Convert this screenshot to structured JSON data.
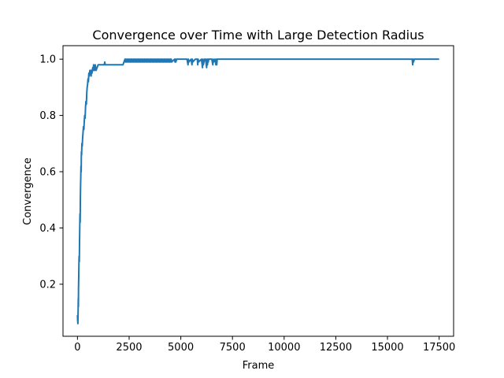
{
  "chart_data": {
    "type": "line",
    "title": "Convergence over Time with Large Detection Radius",
    "xlabel": "Frame",
    "ylabel": "Convergence",
    "xlim": [
      -700,
      18200
    ],
    "ylim": [
      0.015,
      1.048
    ],
    "grid": false,
    "xticks": [
      0,
      2500,
      5000,
      7500,
      10000,
      12500,
      15000,
      17500
    ],
    "xtick_labels": [
      "0",
      "2500",
      "5000",
      "7500",
      "10000",
      "12500",
      "15000",
      "17500"
    ],
    "yticks": [
      0.2,
      0.4,
      0.6,
      0.8,
      1.0
    ],
    "ytick_labels": [
      "0.2",
      "0.4",
      "0.6",
      "0.8",
      "1.0"
    ],
    "line_color": "#1f77b4",
    "series": [
      {
        "x": [
          0,
          10,
          20,
          25,
          30,
          40,
          45,
          50,
          60,
          70,
          80,
          90,
          100,
          110,
          120,
          130,
          140,
          150,
          160,
          170,
          180,
          190,
          200,
          215,
          230,
          250,
          270,
          290,
          310,
          330,
          350,
          370,
          390,
          410,
          430,
          450,
          470,
          490,
          510,
          530,
          550,
          570,
          600,
          620,
          640,
          660,
          680,
          700,
          720,
          740,
          760,
          780,
          800,
          820,
          840,
          860,
          880,
          900,
          1000,
          1100,
          1200,
          1300,
          1320,
          1340,
          1400,
          1600,
          1800,
          2000,
          2200,
          2300,
          2320,
          2340,
          2360,
          2400,
          2420,
          2440,
          2460,
          2500,
          2520,
          2540,
          2560,
          2600,
          2620,
          2640,
          2660,
          2700,
          2720,
          2740,
          2760,
          2800,
          2820,
          2840,
          2860,
          2900,
          2920,
          2940,
          2960,
          3000,
          3020,
          3040,
          3060,
          3100,
          3120,
          3140,
          3160,
          3200,
          3220,
          3240,
          3260,
          3300,
          3320,
          3340,
          3360,
          3400,
          3420,
          3440,
          3460,
          3500,
          3520,
          3540,
          3560,
          3600,
          3620,
          3640,
          3660,
          3700,
          3720,
          3740,
          3760,
          3800,
          3820,
          3840,
          3860,
          3900,
          3920,
          3940,
          3960,
          4000,
          4020,
          4040,
          4060,
          4100,
          4120,
          4140,
          4160,
          4200,
          4220,
          4240,
          4260,
          4300,
          4320,
          4340,
          4360,
          4400,
          4420,
          4440,
          4460,
          4500,
          4520,
          4540,
          4560,
          4700,
          4720,
          4740,
          4760,
          4800,
          5000,
          5300,
          5350,
          5370,
          5390,
          5500,
          5540,
          5560,
          5580,
          5700,
          5800,
          5820,
          5840,
          5860,
          6000,
          6050,
          6070,
          6090,
          6150,
          6200,
          6250,
          6270,
          6290,
          6310,
          6330,
          6350,
          6400,
          6500,
          6550,
          6570,
          6590,
          6650,
          6700,
          6720,
          6740,
          6760,
          6800,
          6850,
          7000,
          8000,
          10000,
          12000,
          14000,
          16000,
          16200,
          16220,
          16240,
          16260,
          16300,
          17000,
          17500
        ],
        "y": [
          0.09,
          0.07,
          0.06,
          0.08,
          0.1,
          0.15,
          0.12,
          0.18,
          0.22,
          0.27,
          0.3,
          0.28,
          0.35,
          0.4,
          0.45,
          0.42,
          0.5,
          0.55,
          0.58,
          0.62,
          0.6,
          0.67,
          0.66,
          0.7,
          0.69,
          0.72,
          0.74,
          0.76,
          0.75,
          0.78,
          0.8,
          0.79,
          0.83,
          0.85,
          0.84,
          0.88,
          0.9,
          0.91,
          0.93,
          0.92,
          0.95,
          0.94,
          0.96,
          0.95,
          0.96,
          0.94,
          0.96,
          0.95,
          0.96,
          0.97,
          0.96,
          0.98,
          0.97,
          0.96,
          0.97,
          0.98,
          0.97,
          0.96,
          0.98,
          0.98,
          0.98,
          0.98,
          0.99,
          0.98,
          0.98,
          0.98,
          0.98,
          0.98,
          0.98,
          1.0,
          0.99,
          1.0,
          0.99,
          1.0,
          0.99,
          1.0,
          0.99,
          1.0,
          0.99,
          1.0,
          0.99,
          1.0,
          0.99,
          1.0,
          0.99,
          1.0,
          0.99,
          1.0,
          0.99,
          1.0,
          0.99,
          1.0,
          0.99,
          1.0,
          0.99,
          1.0,
          0.99,
          1.0,
          0.99,
          1.0,
          0.99,
          1.0,
          0.99,
          1.0,
          0.99,
          1.0,
          0.99,
          1.0,
          0.99,
          1.0,
          0.99,
          1.0,
          0.99,
          1.0,
          0.99,
          1.0,
          0.99,
          1.0,
          0.99,
          1.0,
          0.99,
          1.0,
          0.99,
          1.0,
          0.99,
          1.0,
          0.99,
          1.0,
          0.99,
          1.0,
          0.99,
          1.0,
          0.99,
          1.0,
          0.99,
          1.0,
          0.99,
          1.0,
          0.99,
          1.0,
          0.99,
          1.0,
          0.99,
          1.0,
          0.99,
          1.0,
          0.99,
          1.0,
          0.99,
          1.0,
          0.99,
          1.0,
          0.99,
          1.0,
          0.99,
          1.0,
          0.99,
          1.0,
          0.99,
          1.0,
          0.99,
          1.0,
          0.99,
          1.0,
          0.99,
          1.0,
          1.0,
          1.0,
          0.98,
          1.0,
          0.99,
          1.0,
          0.98,
          1.0,
          0.99,
          1.0,
          1.0,
          0.98,
          1.0,
          0.99,
          1.0,
          0.97,
          1.0,
          0.98,
          1.0,
          1.0,
          0.97,
          1.0,
          0.98,
          1.0,
          0.99,
          1.0,
          1.0,
          1.0,
          0.98,
          1.0,
          0.99,
          1.0,
          0.98,
          1.0,
          0.98,
          1.0,
          1.0,
          1.0,
          1.0,
          1.0,
          1.0,
          1.0,
          1.0,
          1.0,
          1.0,
          0.98,
          1.0,
          0.99,
          1.0,
          1.0,
          1.0
        ]
      }
    ]
  }
}
